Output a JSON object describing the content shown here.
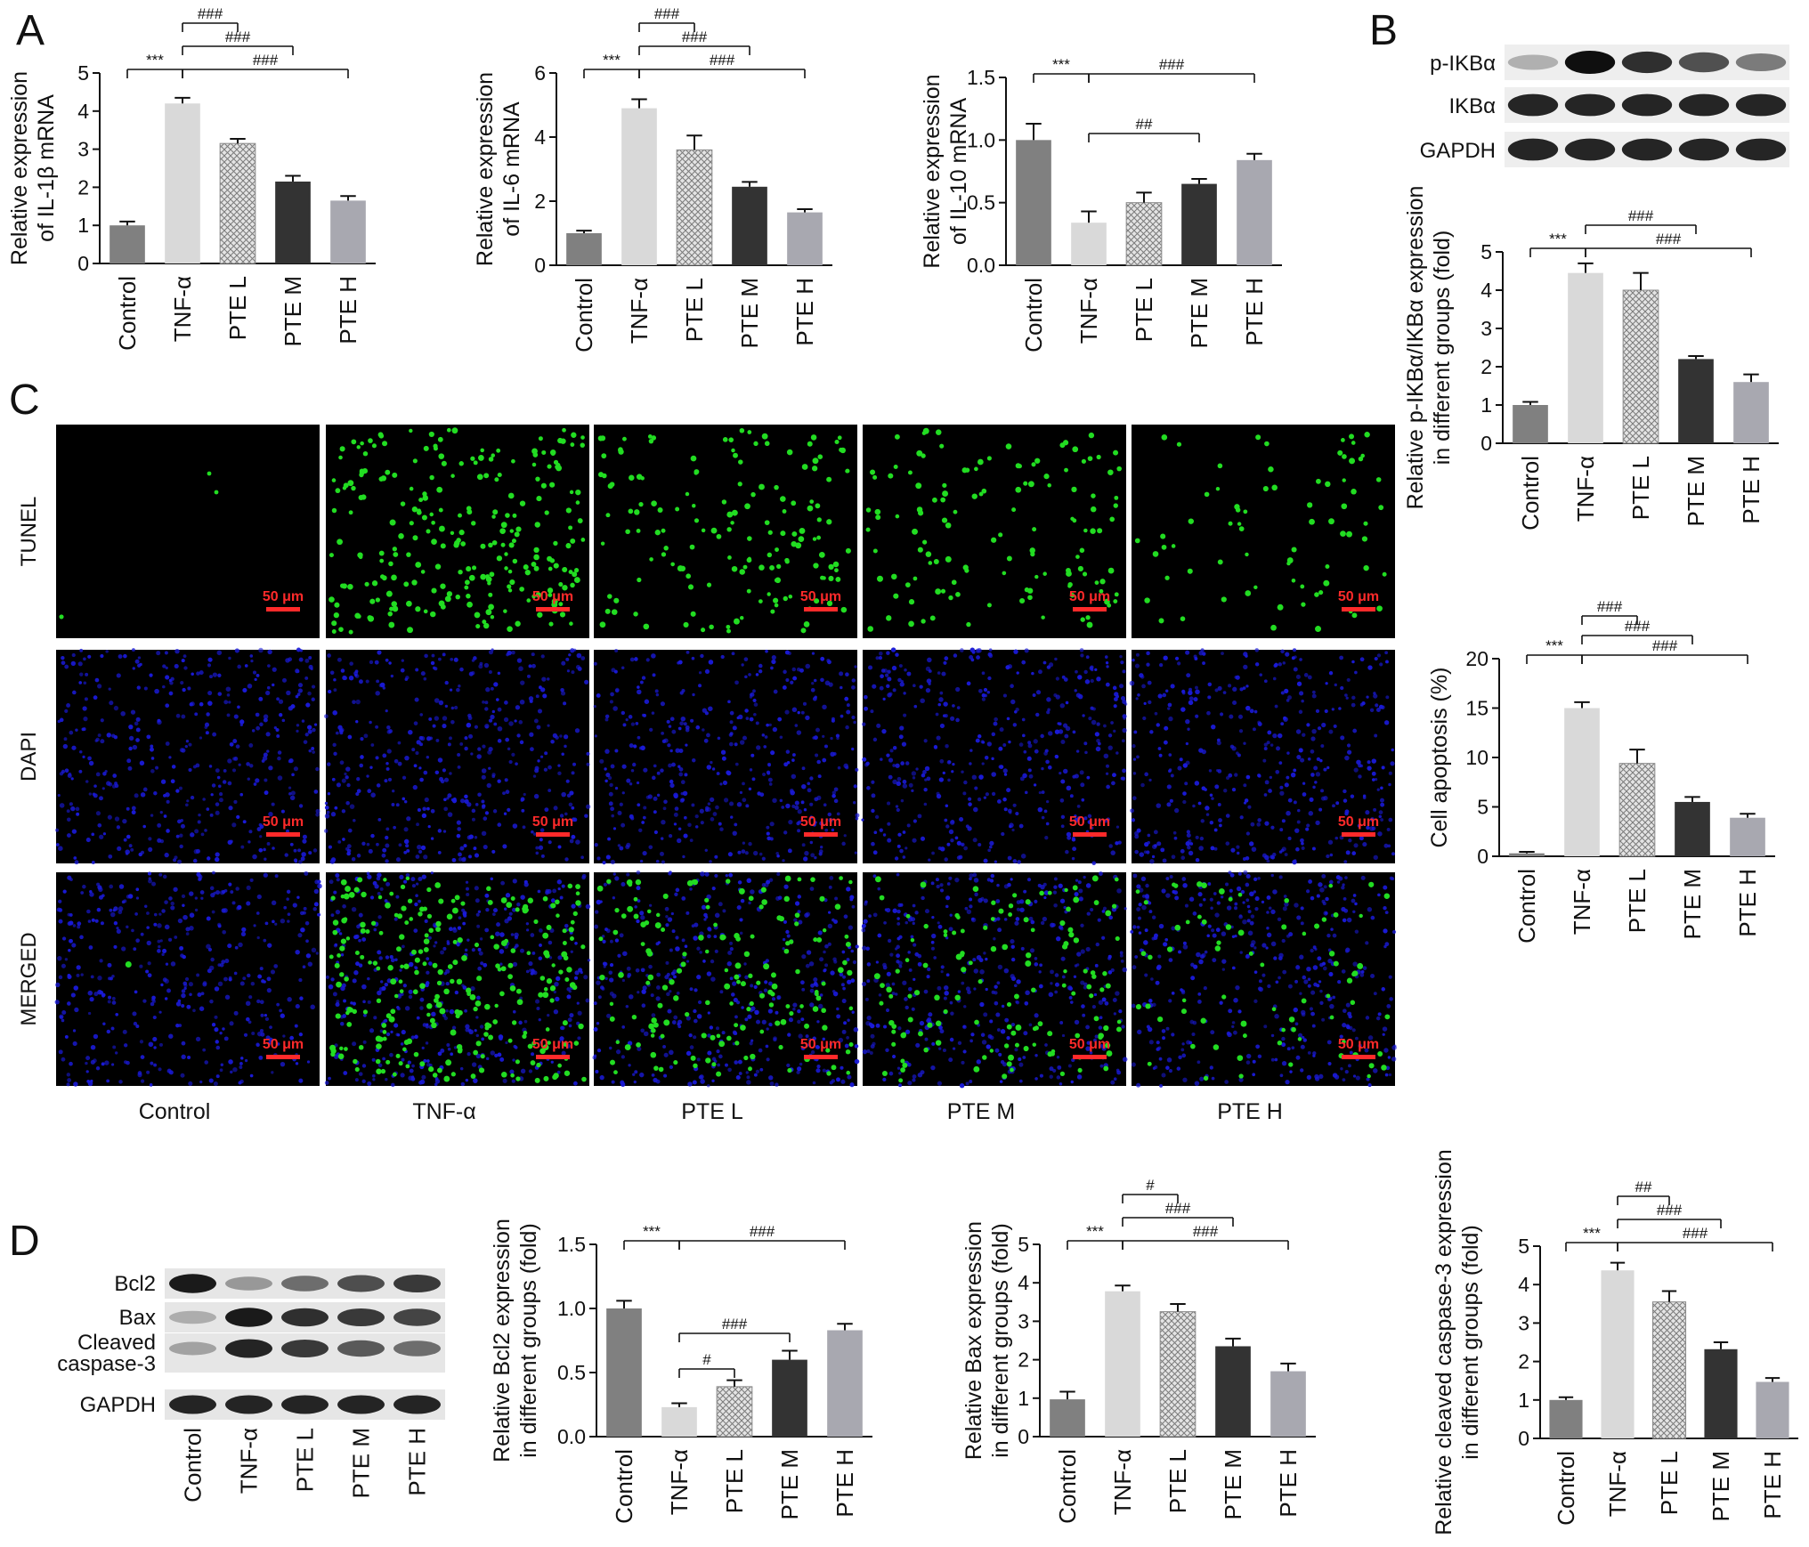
{
  "panel_labels": {
    "a": "A",
    "b": "B",
    "c": "C",
    "d": "D"
  },
  "groups": [
    "Control",
    "TNF-α",
    "PTE L",
    "PTE M",
    "PTE H"
  ],
  "colors": {
    "bars": [
      "#808080",
      "#d9d9d9",
      "#bdbdbd",
      "#333333",
      "#a8a8b0"
    ],
    "pattern_bar": "PTE L (crosshatch)",
    "tunel": "#22dd22",
    "dapi": "#1a1ad8",
    "scale_bar": "#ff2a2a"
  },
  "chart_data": [
    {
      "id": "il1b",
      "type": "bar",
      "ylabel": [
        "Relative expression",
        "of IL-1β mRNA"
      ],
      "categories": [
        "Control",
        "TNF-α",
        "PTE L",
        "PTE M",
        "PTE H"
      ],
      "values": [
        1.0,
        4.2,
        3.15,
        2.15,
        1.65
      ],
      "errors": [
        0.1,
        0.15,
        0.12,
        0.15,
        0.12
      ],
      "ylim": [
        0,
        5
      ],
      "yticks": [
        "0",
        "1",
        "2",
        "3",
        "4",
        "5"
      ],
      "brackets": [
        {
          "from": 0,
          "to": [
            1
          ],
          "label": "***"
        },
        {
          "from": 1,
          "to": [
            2
          ],
          "label": "###"
        },
        {
          "from": 1,
          "to": [
            3
          ],
          "label": "###"
        },
        {
          "from": 1,
          "to": [
            4
          ],
          "label": "###"
        }
      ]
    },
    {
      "id": "il6",
      "type": "bar",
      "ylabel": [
        "Relative expression",
        "of IL-6 mRNA"
      ],
      "categories": [
        "Control",
        "TNF-α",
        "PTE L",
        "PTE M",
        "PTE H"
      ],
      "values": [
        1.0,
        4.9,
        3.6,
        2.45,
        1.65
      ],
      "errors": [
        0.08,
        0.28,
        0.45,
        0.15,
        0.1
      ],
      "ylim": [
        0,
        6
      ],
      "yticks": [
        "0",
        "2",
        "4",
        "6"
      ],
      "brackets": [
        {
          "from": 0,
          "to": [
            1
          ],
          "label": "***"
        },
        {
          "from": 1,
          "to": [
            2
          ],
          "label": "###"
        },
        {
          "from": 1,
          "to": [
            3
          ],
          "label": "###"
        },
        {
          "from": 1,
          "to": [
            4
          ],
          "label": "###"
        }
      ]
    },
    {
      "id": "il10",
      "type": "bar",
      "ylabel": [
        "Relative expression",
        "of IL-10 mRNA"
      ],
      "categories": [
        "Control",
        "TNF-α",
        "PTE L",
        "PTE M",
        "PTE H"
      ],
      "values": [
        1.0,
        0.34,
        0.5,
        0.65,
        0.84
      ],
      "errors": [
        0.13,
        0.09,
        0.08,
        0.04,
        0.05
      ],
      "ylim": [
        0,
        1.5
      ],
      "yticks": [
        "0.0",
        "0.5",
        "1.0",
        "1.5"
      ],
      "brackets": [
        {
          "from": 0,
          "to": [
            1
          ],
          "label": "***"
        },
        {
          "from": 1,
          "to": [
            4
          ],
          "label": "###"
        },
        {
          "from": 1,
          "to": [
            3
          ],
          "label": "##",
          "low": true
        }
      ]
    },
    {
      "id": "pikba",
      "type": "bar",
      "ylabel": [
        "Relative p-IKBα/IKBα expression",
        "in different groups (fold)"
      ],
      "categories": [
        "Control",
        "TNF-α",
        "PTE L",
        "PTE M",
        "PTE H"
      ],
      "values": [
        1.0,
        4.45,
        4.0,
        2.2,
        1.6
      ],
      "errors": [
        0.08,
        0.25,
        0.45,
        0.08,
        0.2
      ],
      "ylim": [
        0,
        5
      ],
      "yticks": [
        "0",
        "1",
        "2",
        "3",
        "4",
        "5"
      ],
      "brackets": [
        {
          "from": 0,
          "to": [
            1
          ],
          "label": "***"
        },
        {
          "from": 1,
          "to": [
            3
          ],
          "label": "###"
        },
        {
          "from": 1,
          "to": [
            4
          ],
          "label": "###"
        }
      ]
    },
    {
      "id": "apoptosis",
      "type": "bar",
      "ylabel": [
        "Cell apoptosis (%)"
      ],
      "categories": [
        "Control",
        "TNF-α",
        "PTE L",
        "PTE M",
        "PTE H"
      ],
      "values": [
        0.3,
        15.0,
        9.4,
        5.5,
        3.9
      ],
      "errors": [
        0.15,
        0.6,
        1.4,
        0.5,
        0.4
      ],
      "ylim": [
        0,
        20
      ],
      "yticks": [
        "0",
        "5",
        "10",
        "15",
        "20"
      ],
      "brackets": [
        {
          "from": 0,
          "to": [
            1
          ],
          "label": "***"
        },
        {
          "from": 1,
          "to": [
            2
          ],
          "label": "###"
        },
        {
          "from": 1,
          "to": [
            3
          ],
          "label": "###"
        },
        {
          "from": 1,
          "to": [
            4
          ],
          "label": "###"
        }
      ]
    },
    {
      "id": "bcl2",
      "type": "bar",
      "ylabel": [
        "Relative Bcl2 expression",
        "in different groups (fold)"
      ],
      "categories": [
        "Control",
        "TNF-α",
        "PTE L",
        "PTE M",
        "PTE H"
      ],
      "values": [
        1.0,
        0.23,
        0.39,
        0.6,
        0.83
      ],
      "errors": [
        0.06,
        0.03,
        0.05,
        0.07,
        0.05
      ],
      "ylim": [
        0,
        1.5
      ],
      "yticks": [
        "0.0",
        "0.5",
        "1.0",
        "1.5"
      ],
      "brackets": [
        {
          "from": 0,
          "to": [
            1
          ],
          "label": "***"
        },
        {
          "from": 1,
          "to": [
            4
          ],
          "label": "###"
        },
        {
          "from": 1,
          "to": [
            3
          ],
          "label": "###",
          "low": true
        },
        {
          "from": 1,
          "to": [
            2
          ],
          "label": "#",
          "low": true
        }
      ]
    },
    {
      "id": "bax",
      "type": "bar",
      "ylabel": [
        "Relative Bax expression",
        "in different groups (fold)"
      ],
      "categories": [
        "Control",
        "TNF-α",
        "PTE L",
        "PTE M",
        "PTE H"
      ],
      "values": [
        0.97,
        3.78,
        3.25,
        2.35,
        1.7
      ],
      "errors": [
        0.2,
        0.15,
        0.2,
        0.2,
        0.2
      ],
      "ylim": [
        0,
        5
      ],
      "yticks": [
        "0",
        "1",
        "2",
        "3",
        "4",
        "5"
      ],
      "brackets": [
        {
          "from": 0,
          "to": [
            1
          ],
          "label": "***"
        },
        {
          "from": 1,
          "to": [
            2
          ],
          "label": "#"
        },
        {
          "from": 1,
          "to": [
            3
          ],
          "label": "###"
        },
        {
          "from": 1,
          "to": [
            4
          ],
          "label": "###"
        }
      ]
    },
    {
      "id": "casp3",
      "type": "bar",
      "ylabel": [
        "Relative cleaved caspase-3 expression",
        "in different groups (fold)"
      ],
      "categories": [
        "Control",
        "TNF-α",
        "PTE L",
        "PTE M",
        "PTE H"
      ],
      "values": [
        1.0,
        4.37,
        3.55,
        2.32,
        1.47
      ],
      "errors": [
        0.07,
        0.2,
        0.28,
        0.18,
        0.1
      ],
      "ylim": [
        0,
        5
      ],
      "yticks": [
        "0",
        "1",
        "2",
        "3",
        "4",
        "5"
      ],
      "brackets": [
        {
          "from": 0,
          "to": [
            1
          ],
          "label": "***"
        },
        {
          "from": 1,
          "to": [
            2
          ],
          "label": "##"
        },
        {
          "from": 1,
          "to": [
            3
          ],
          "label": "###"
        },
        {
          "from": 1,
          "to": [
            4
          ],
          "label": "###"
        }
      ]
    }
  ],
  "blot_b": {
    "rows": [
      {
        "label": "p-IKBα",
        "intensity": [
          0.25,
          1.0,
          0.85,
          0.7,
          0.5
        ]
      },
      {
        "label": "IKBα",
        "intensity": [
          0.9,
          0.9,
          0.9,
          0.9,
          0.9
        ]
      },
      {
        "label": "GAPDH",
        "intensity": [
          0.9,
          0.9,
          0.9,
          0.9,
          0.9
        ]
      }
    ]
  },
  "blot_d": {
    "rows": [
      {
        "label": [
          "Bcl2"
        ],
        "intensity": [
          0.95,
          0.35,
          0.55,
          0.7,
          0.8
        ]
      },
      {
        "label": [
          "Bax"
        ],
        "intensity": [
          0.25,
          0.95,
          0.85,
          0.8,
          0.75
        ]
      },
      {
        "label": [
          "Cleaved",
          "caspase-3"
        ],
        "intensity": [
          0.3,
          0.9,
          0.8,
          0.65,
          0.55
        ]
      },
      {
        "label": [
          "GAPDH"
        ],
        "intensity": [
          0.9,
          0.9,
          0.9,
          0.9,
          0.9
        ]
      }
    ],
    "categories": [
      "Control",
      "TNF-α",
      "PTE L",
      "PTE M",
      "PTE H"
    ]
  },
  "micrographs": {
    "rows": [
      "TUNEL",
      "DAPI",
      "MERGED"
    ],
    "columns": [
      "Control",
      "TNF-α",
      "PTE L",
      "PTE M",
      "PTE H"
    ],
    "scale_label": "50 μm",
    "tunel_density": [
      0.004,
      1.0,
      0.6,
      0.5,
      0.28
    ]
  }
}
